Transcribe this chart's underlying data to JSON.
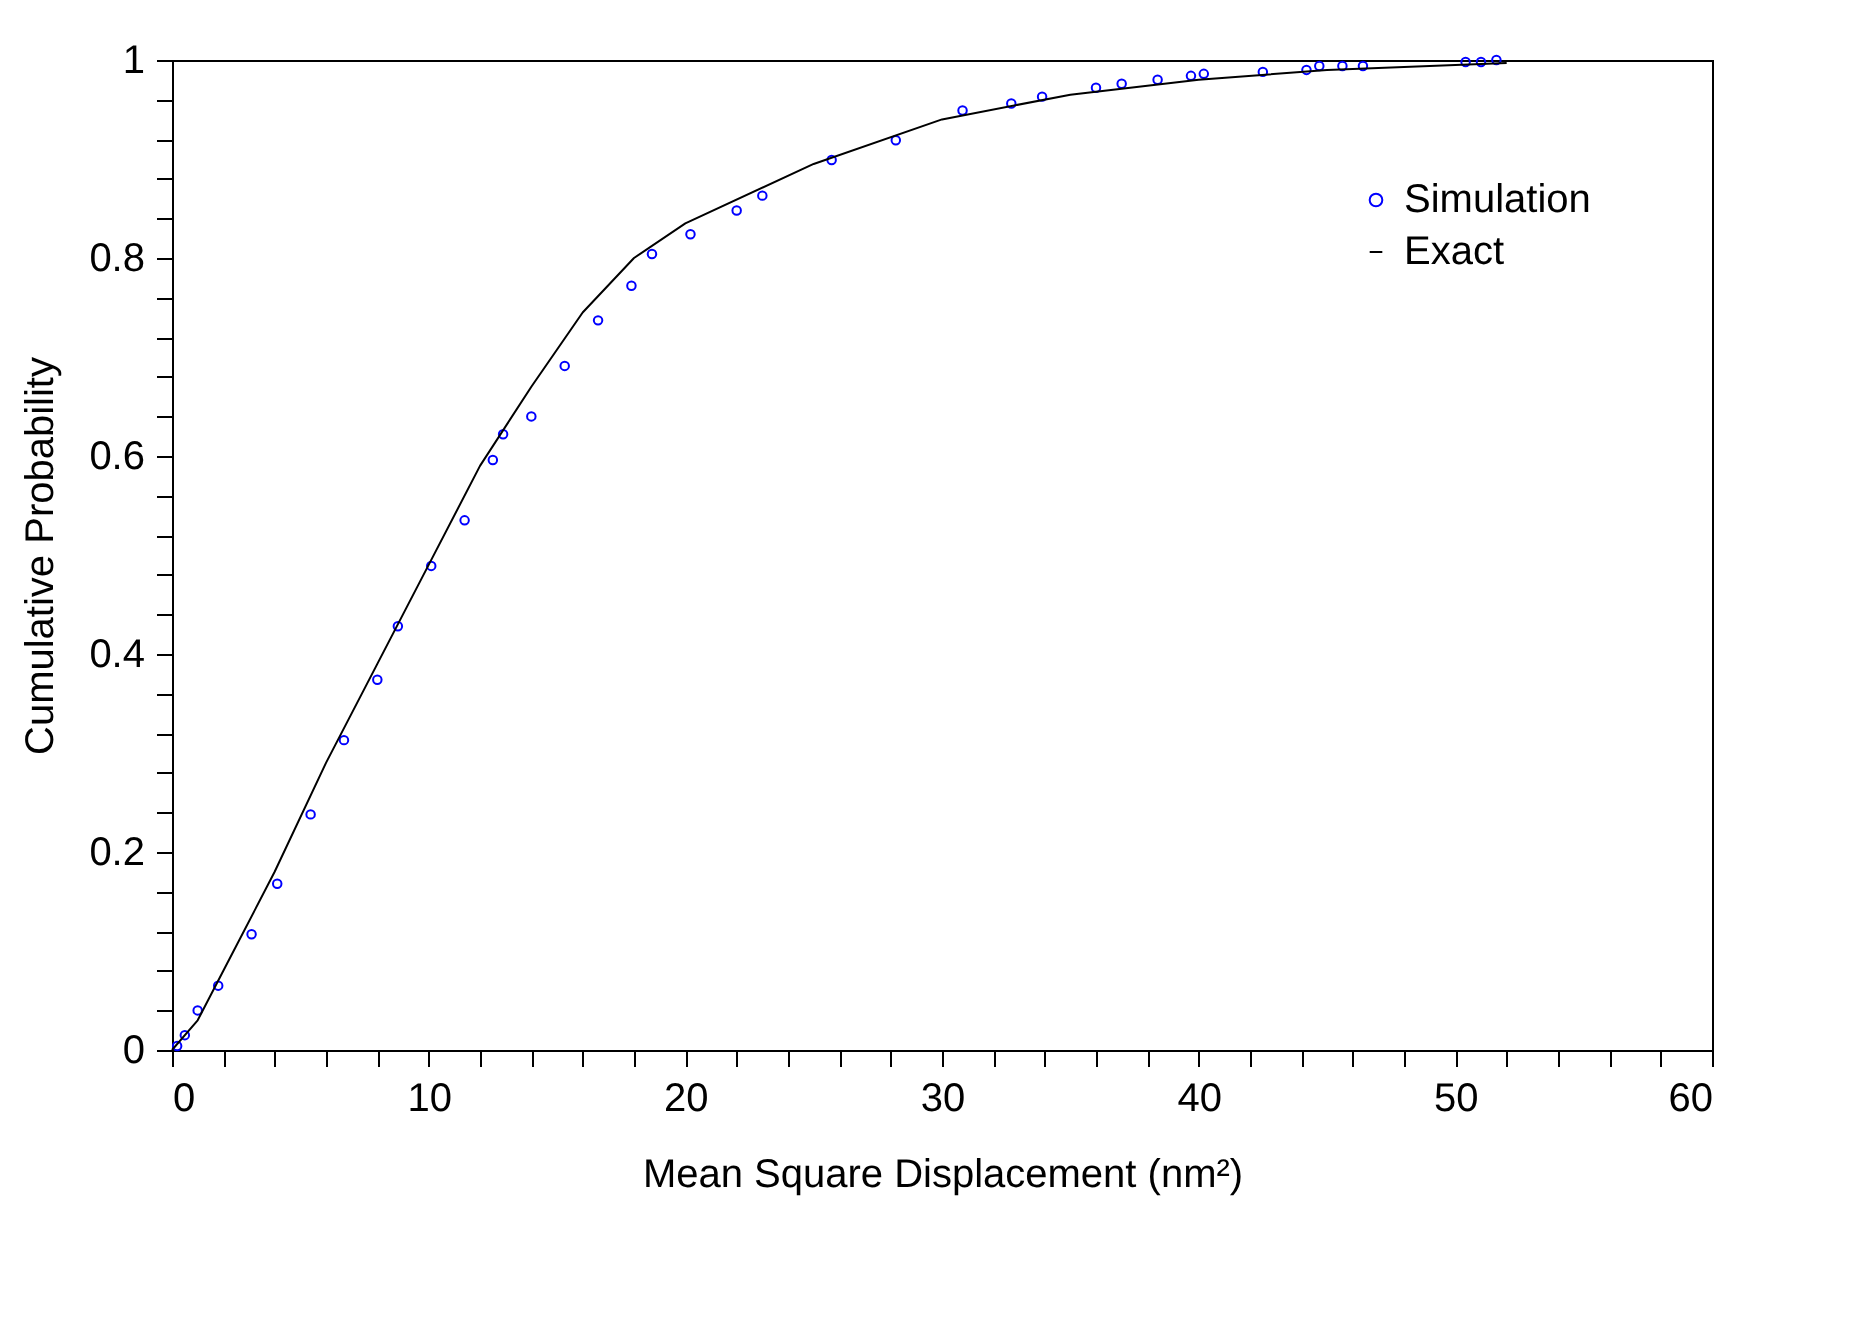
{
  "chart_data": {
    "type": "scatter",
    "xlabel": "Mean Square Displacement (nm²)",
    "ylabel": "Cumulative Probability",
    "xlim": [
      0,
      60
    ],
    "ylim": [
      0,
      1
    ],
    "xticks": [
      0,
      {
        "value": 2,
        "label": null
      },
      {
        "value": 4,
        "label": null
      },
      {
        "value": 6,
        "label": null
      },
      {
        "value": 8,
        "label": null
      },
      10,
      {
        "value": 12,
        "label": null
      },
      {
        "value": 14,
        "label": null
      },
      {
        "value": 16,
        "label": null
      },
      {
        "value": 18,
        "label": null
      },
      20,
      {
        "value": 22,
        "label": null
      },
      {
        "value": 24,
        "label": null
      },
      {
        "value": 26,
        "label": null
      },
      {
        "value": 28,
        "label": null
      },
      30,
      {
        "value": 32,
        "label": null
      },
      {
        "value": 34,
        "label": null
      },
      {
        "value": 36,
        "label": null
      },
      {
        "value": 38,
        "label": null
      },
      40,
      {
        "value": 42,
        "label": null
      },
      {
        "value": 44,
        "label": null
      },
      {
        "value": 46,
        "label": null
      },
      {
        "value": 48,
        "label": null
      },
      50,
      {
        "value": 52,
        "label": null
      },
      {
        "value": 54,
        "label": null
      },
      {
        "value": 56,
        "label": null
      },
      {
        "value": 58,
        "label": null
      },
      60
    ],
    "yticks": [
      0,
      {
        "value": 0.04,
        "label": null
      },
      {
        "value": 0.08,
        "label": null
      },
      {
        "value": 0.12,
        "label": null
      },
      {
        "value": 0.16,
        "label": null
      },
      0.2,
      {
        "value": 0.24,
        "label": null
      },
      {
        "value": 0.28,
        "label": null
      },
      {
        "value": 0.32,
        "label": null
      },
      {
        "value": 0.36,
        "label": null
      },
      0.4,
      {
        "value": 0.44,
        "label": null
      },
      {
        "value": 0.48,
        "label": null
      },
      {
        "value": 0.52,
        "label": null
      },
      {
        "value": 0.56,
        "label": null
      },
      0.6,
      {
        "value": 0.64,
        "label": null
      },
      {
        "value": 0.68,
        "label": null
      },
      {
        "value": 0.72,
        "label": null
      },
      {
        "value": 0.76,
        "label": null
      },
      0.8,
      {
        "value": 0.84,
        "label": null
      },
      {
        "value": 0.88,
        "label": null
      },
      {
        "value": 0.92,
        "label": null
      },
      {
        "value": 0.96,
        "label": null
      },
      1
    ],
    "grid": false,
    "legend": "top right",
    "series": [
      {
        "name": "Simulation",
        "marker": "circle",
        "color": "#0000ff",
        "x": [
          0.2,
          0.5,
          1.0,
          1.8,
          3.1,
          4.1,
          5.4,
          6.7,
          8.0,
          8.8,
          10.1,
          11.4,
          12.5,
          12.9,
          14.0,
          15.3,
          16.6,
          17.9,
          18.7,
          20.2,
          22.0,
          23.0,
          25.7,
          28.2,
          30.8,
          32.7,
          33.9,
          36.0,
          37.0,
          38.4,
          39.7,
          40.2,
          42.5,
          44.2,
          44.7,
          45.6,
          46.4,
          50.4,
          51.0,
          51.6
        ],
        "values": [
          0.004,
          0.015,
          0.04,
          0.065,
          0.117,
          0.168,
          0.238,
          0.313,
          0.374,
          0.428,
          0.489,
          0.535,
          0.596,
          0.622,
          0.64,
          0.691,
          0.737,
          0.772,
          0.804,
          0.824,
          0.848,
          0.863,
          0.899,
          0.919,
          0.949,
          0.956,
          0.963,
          0.972,
          0.976,
          0.98,
          0.984,
          0.986,
          0.988,
          0.99,
          0.994,
          0.994,
          0.994,
          0.998,
          0.998,
          1.0
        ]
      },
      {
        "name": "Exact",
        "type": "line",
        "color": "#000000",
        "line_style": "solid",
        "x": [
          0,
          1,
          2,
          4,
          6,
          8,
          10,
          12,
          14,
          16,
          18,
          20,
          25,
          30,
          35,
          40,
          45,
          52
        ],
        "values": [
          0,
          0.03,
          0.08,
          0.18,
          0.29,
          0.39,
          0.49,
          0.59,
          0.67,
          0.745,
          0.8,
          0.835,
          0.895,
          0.94,
          0.965,
          0.98,
          0.99,
          0.997
        ]
      }
    ]
  }
}
